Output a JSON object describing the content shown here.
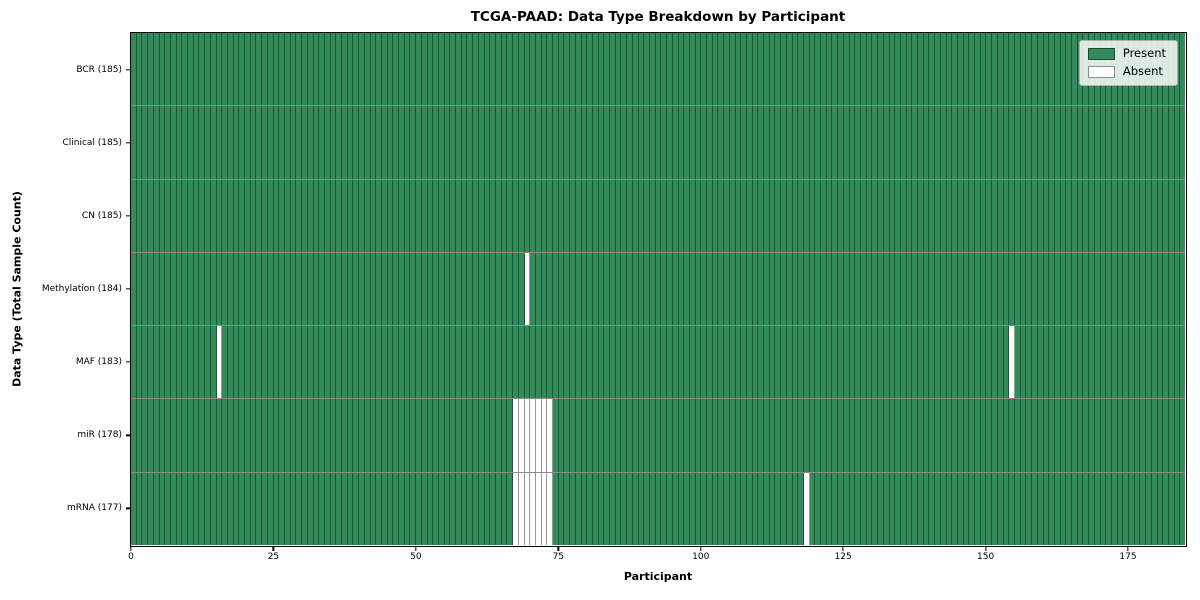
{
  "chart_data": {
    "type": "heatmap",
    "title": "TCGA-PAAD: Data Type Breakdown by Participant",
    "xlabel": "Participant",
    "ylabel": "Data Type (Total Sample Count)",
    "x_ticks": [
      0,
      25,
      50,
      75,
      100,
      125,
      150,
      175
    ],
    "x_range": [
      0,
      185
    ],
    "n_participants": 185,
    "grid": false,
    "legend_position": "upper right",
    "legend_items": [
      {
        "label": "Present",
        "color": "#338a5b"
      },
      {
        "label": "Absent",
        "color": "#ffffff"
      }
    ],
    "colors": {
      "present": "#338a5b",
      "absent": "#ffffff",
      "edge": "rgba(0,0,0,0.4)"
    },
    "rows": [
      {
        "label": "BCR (185)",
        "data_type": "BCR",
        "total_samples": 185,
        "missing_participants": []
      },
      {
        "label": "Clinical (185)",
        "data_type": "Clinical",
        "total_samples": 185,
        "missing_participants": []
      },
      {
        "label": "CN (185)",
        "data_type": "CN",
        "total_samples": 185,
        "missing_participants": []
      },
      {
        "label": "Methylation (184)",
        "data_type": "Methylation",
        "total_samples": 184,
        "missing_participants": [
          69
        ]
      },
      {
        "label": "MAF (183)",
        "data_type": "MAF",
        "total_samples": 183,
        "missing_participants": [
          15,
          154
        ]
      },
      {
        "label": "miR (178)",
        "data_type": "miR",
        "total_samples": 178,
        "missing_participants": [
          67,
          68,
          69,
          70,
          71,
          72,
          73
        ]
      },
      {
        "label": "mRNA (177)",
        "data_type": "mRNA",
        "total_samples": 177,
        "missing_participants": [
          67,
          68,
          69,
          70,
          71,
          72,
          73,
          118
        ]
      }
    ]
  }
}
